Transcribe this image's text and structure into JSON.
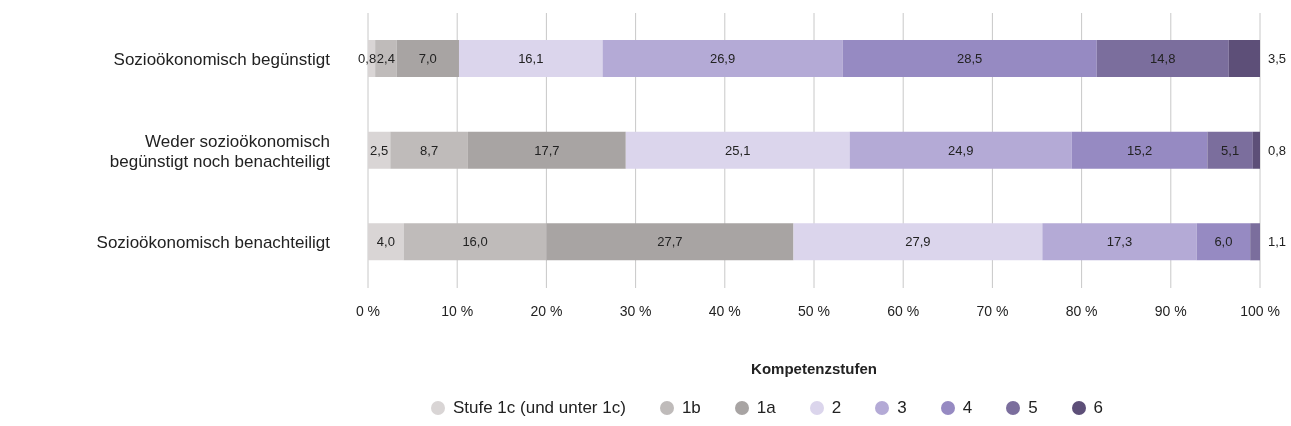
{
  "chart_data": {
    "type": "bar",
    "orientation": "horizontal",
    "stacked": true,
    "categories": [
      "Sozioökonomisch begünstigt",
      "Weder sozioökonomisch begünstigt noch benachteiligt",
      "Sozioökonomisch benachteiligt"
    ],
    "series": [
      {
        "name": "Stufe 1c (und unter 1c)",
        "color": "#d9d5d5",
        "values": [
          0.8,
          2.5,
          4.0
        ],
        "value_labels": [
          "0,8",
          "2,5",
          "4,0"
        ]
      },
      {
        "name": "1b",
        "color": "#bfbbba",
        "values": [
          2.4,
          8.7,
          16.0
        ],
        "value_labels": [
          "2,4",
          "8,7",
          "16,0"
        ]
      },
      {
        "name": "1a",
        "color": "#a8a4a3",
        "values": [
          7.0,
          17.7,
          27.7
        ],
        "value_labels": [
          "7,0",
          "17,7",
          "27,7"
        ]
      },
      {
        "name": "2",
        "color": "#dbd5ec",
        "values": [
          16.1,
          25.1,
          27.9
        ],
        "value_labels": [
          "16,1",
          "25,1",
          "27,9"
        ]
      },
      {
        "name": "3",
        "color": "#b4aad6",
        "values": [
          26.9,
          24.9,
          17.3
        ],
        "value_labels": [
          "26,9",
          "24,9",
          "17,3"
        ]
      },
      {
        "name": "4",
        "color": "#968ac2",
        "values": [
          28.5,
          15.2,
          6.0
        ],
        "value_labels": [
          "28,5",
          "15,2",
          "6,0"
        ]
      },
      {
        "name": "5",
        "color": "#7b6e9d",
        "values": [
          14.8,
          5.1,
          1.1
        ],
        "value_labels": [
          "14,8",
          "5,1",
          "1,1"
        ]
      },
      {
        "name": "6",
        "color": "#5d4f78",
        "values": [
          3.5,
          0.8,
          null
        ],
        "value_labels": [
          "3,5",
          "0,8",
          null
        ]
      }
    ],
    "xlim": [
      0,
      100
    ],
    "xticks": [
      {
        "value": 0,
        "label": "0 %"
      },
      {
        "value": 10,
        "label": "10 %"
      },
      {
        "value": 20,
        "label": "20 %"
      },
      {
        "value": 30,
        "label": "30 %"
      },
      {
        "value": 40,
        "label": "40 %"
      },
      {
        "value": 50,
        "label": "50 %"
      },
      {
        "value": 60,
        "label": "60 %"
      },
      {
        "value": 70,
        "label": "70 %"
      },
      {
        "value": 80,
        "label": "80 %"
      },
      {
        "value": 90,
        "label": "90 %"
      },
      {
        "value": 100,
        "label": "100 %"
      }
    ],
    "xlabel": "Kompetenzstufen",
    "grid": "x",
    "legend": "bottom"
  }
}
